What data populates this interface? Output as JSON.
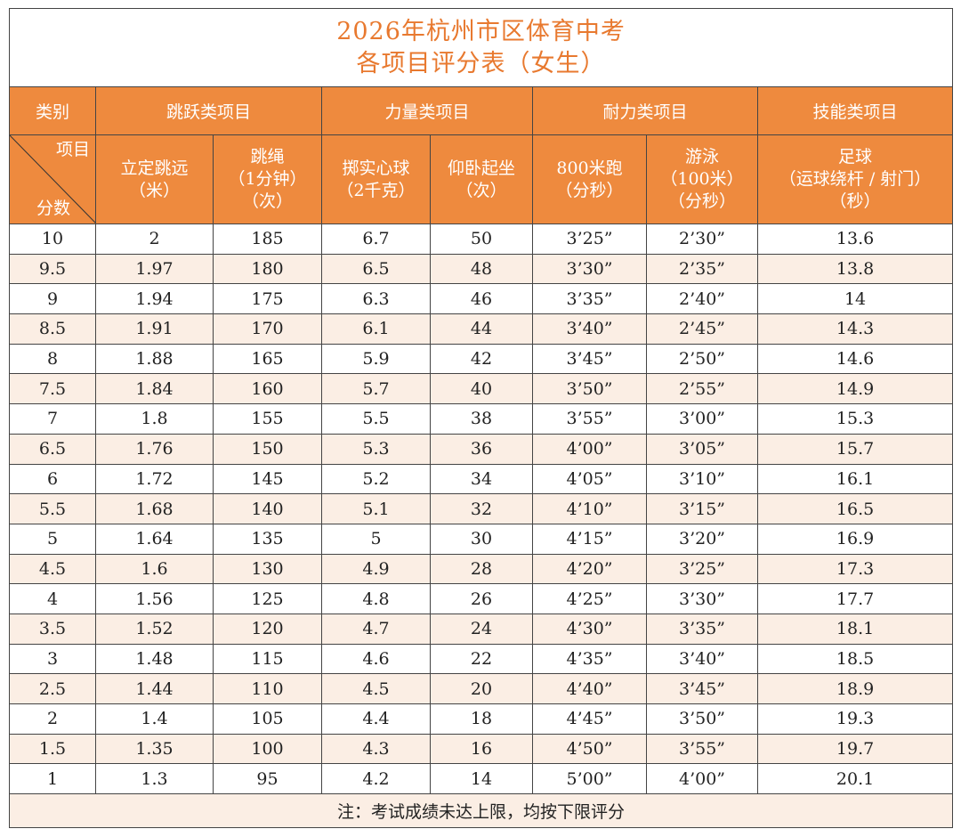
{
  "title": {
    "line1": "2026年杭州市区体育中考",
    "line2": "各项目评分表（女生）"
  },
  "header": {
    "category_label": "类别",
    "diag_top": "项目",
    "diag_bottom": "分数",
    "groups": [
      "跳跃类项目",
      "力量类项目",
      "耐力类项目",
      "技能类项目"
    ],
    "items": [
      [
        "立定跳远",
        "（米）"
      ],
      [
        "跳绳",
        "（1分钟）",
        "（次）"
      ],
      [
        "掷实心球",
        "（2千克）"
      ],
      [
        "仰卧起坐",
        "（次）"
      ],
      [
        "800米跑",
        "（分秒）"
      ],
      [
        "游泳",
        "（100米）",
        "（分秒）"
      ],
      [
        "足球",
        "（运球绕杆 / 射门）",
        "（秒）"
      ]
    ]
  },
  "rows": [
    [
      "10",
      "2",
      "185",
      "6.7",
      "50",
      "3’25”",
      "2’30”",
      "13.6"
    ],
    [
      "9.5",
      "1.97",
      "180",
      "6.5",
      "48",
      "3’30”",
      "2’35”",
      "13.8"
    ],
    [
      "9",
      "1.94",
      "175",
      "6.3",
      "46",
      "3’35”",
      "2’40”",
      "14"
    ],
    [
      "8.5",
      "1.91",
      "170",
      "6.1",
      "44",
      "3’40”",
      "2’45”",
      "14.3"
    ],
    [
      "8",
      "1.88",
      "165",
      "5.9",
      "42",
      "3’45”",
      "2’50”",
      "14.6"
    ],
    [
      "7.5",
      "1.84",
      "160",
      "5.7",
      "40",
      "3’50”",
      "2’55”",
      "14.9"
    ],
    [
      "7",
      "1.8",
      "155",
      "5.5",
      "38",
      "3’55”",
      "3’00”",
      "15.3"
    ],
    [
      "6.5",
      "1.76",
      "150",
      "5.3",
      "36",
      "4’00”",
      "3’05”",
      "15.7"
    ],
    [
      "6",
      "1.72",
      "145",
      "5.2",
      "34",
      "4’05”",
      "3’10”",
      "16.1"
    ],
    [
      "5.5",
      "1.68",
      "140",
      "5.1",
      "32",
      "4’10”",
      "3’15”",
      "16.5"
    ],
    [
      "5",
      "1.64",
      "135",
      "5",
      "30",
      "4’15”",
      "3’20”",
      "16.9"
    ],
    [
      "4.5",
      "1.6",
      "130",
      "4.9",
      "28",
      "4’20”",
      "3’25”",
      "17.3"
    ],
    [
      "4",
      "1.56",
      "125",
      "4.8",
      "26",
      "4’25”",
      "3’30”",
      "17.7"
    ],
    [
      "3.5",
      "1.52",
      "120",
      "4.7",
      "24",
      "4’30”",
      "3’35”",
      "18.1"
    ],
    [
      "3",
      "1.48",
      "115",
      "4.6",
      "22",
      "4’35”",
      "3’40”",
      "18.5"
    ],
    [
      "2.5",
      "1.44",
      "110",
      "4.5",
      "20",
      "4’40”",
      "3’45”",
      "18.9"
    ],
    [
      "2",
      "1.4",
      "105",
      "4.4",
      "18",
      "4’45”",
      "3’50”",
      "19.3"
    ],
    [
      "1.5",
      "1.35",
      "100",
      "4.3",
      "16",
      "4’50”",
      "3’55”",
      "19.7"
    ],
    [
      "1",
      "1.3",
      "95",
      "4.2",
      "14",
      "5’00”",
      "4’00”",
      "20.1"
    ]
  ],
  "note": "注：考试成绩未达上限，均按下限评分",
  "colors": {
    "header_bg": "#ee8a3e",
    "title_text": "#e8792f",
    "stripe_bg": "#fbeee4"
  }
}
